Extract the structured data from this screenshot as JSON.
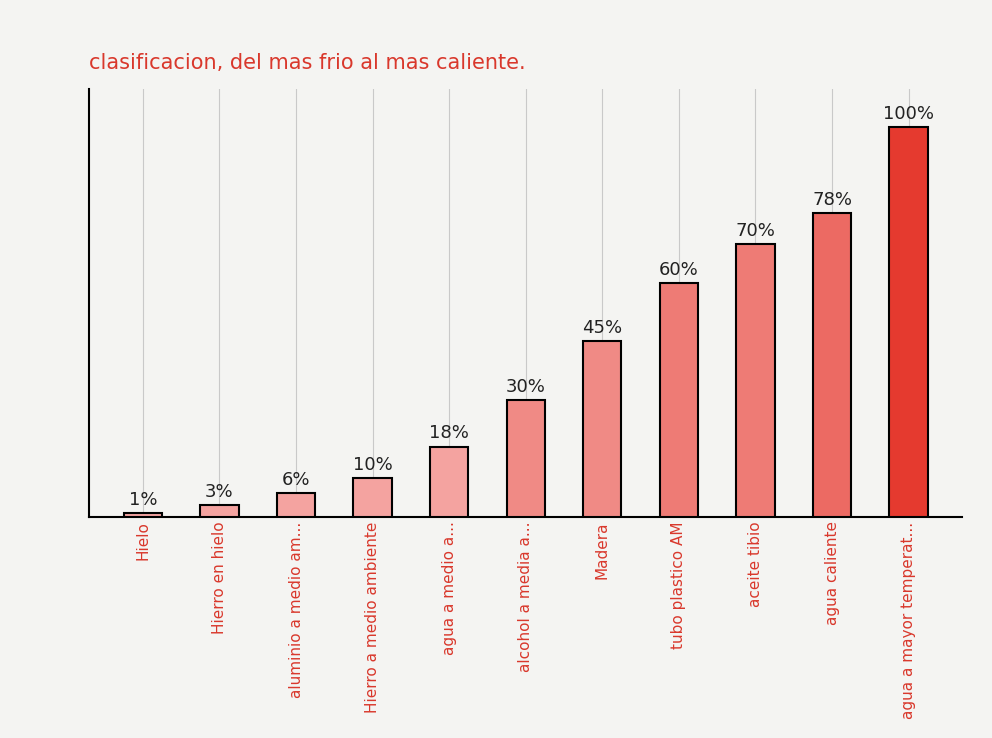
{
  "chart_data": {
    "type": "bar",
    "title": "clasificacion, del mas frio al mas caliente.",
    "categories": [
      "Hielo",
      "Hierro en hielo",
      "aluminio a medio am...",
      "Hierro a medio ambiente",
      "agua a medio a...",
      "alcohol a media a...",
      "Madera",
      "tubo plastico AM",
      "aceite tibio",
      "agua caliente",
      "agua a mayor temperat..."
    ],
    "values": [
      1,
      3,
      6,
      10,
      18,
      30,
      45,
      60,
      70,
      78,
      100
    ],
    "value_labels": [
      "1%",
      "3%",
      "6%",
      "10%",
      "18%",
      "30%",
      "45%",
      "60%",
      "70%",
      "78%",
      "100%"
    ],
    "data_labels": true,
    "colors": [
      "#f4a3a0",
      "#f4a3a0",
      "#f4a3a0",
      "#f4a3a0",
      "#f4a3a0",
      "#f08a85",
      "#f08a85",
      "#ee7b75",
      "#ee7b75",
      "#ec6a63",
      "#e53a2f"
    ],
    "ylim": [
      0,
      110
    ],
    "yticks": [],
    "tick_labels": "x",
    "grid": true
  }
}
